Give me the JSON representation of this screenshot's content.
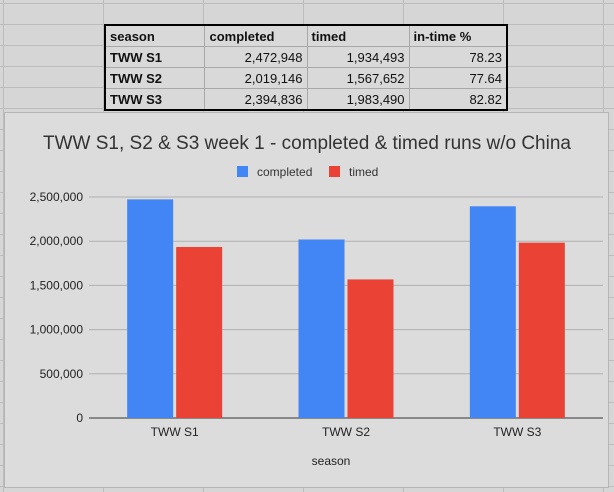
{
  "table": {
    "headers": [
      "season",
      "completed",
      "timed",
      "in-time %"
    ],
    "rows": [
      [
        "TWW S1",
        "2,472,948",
        "1,934,493",
        "78.23"
      ],
      [
        "TWW S2",
        "2,019,146",
        "1,567,652",
        "77.64"
      ],
      [
        "TWW S3",
        "2,394,836",
        "1,983,490",
        "82.82"
      ]
    ]
  },
  "chart_data": {
    "type": "bar",
    "title": "TWW S1, S2 & S3 week 1 - completed & timed runs w/o China",
    "xlabel": "season",
    "ylabel": "",
    "categories": [
      "TWW S1",
      "TWW S2",
      "TWW S3"
    ],
    "series": [
      {
        "name": "completed",
        "color": "#4285f4",
        "values": [
          2472948,
          2019146,
          2394836
        ]
      },
      {
        "name": "timed",
        "color": "#ea4335",
        "values": [
          1934493,
          1567652,
          1983490
        ]
      }
    ],
    "ylim": [
      0,
      2500000
    ],
    "yticks": [
      0,
      500000,
      1000000,
      1500000,
      2000000,
      2500000
    ],
    "ytick_labels": [
      "0",
      "500,000",
      "1,000,000",
      "1,500,000",
      "2,000,000",
      "2,500,000"
    ],
    "grid": true,
    "legend_position": "top"
  }
}
